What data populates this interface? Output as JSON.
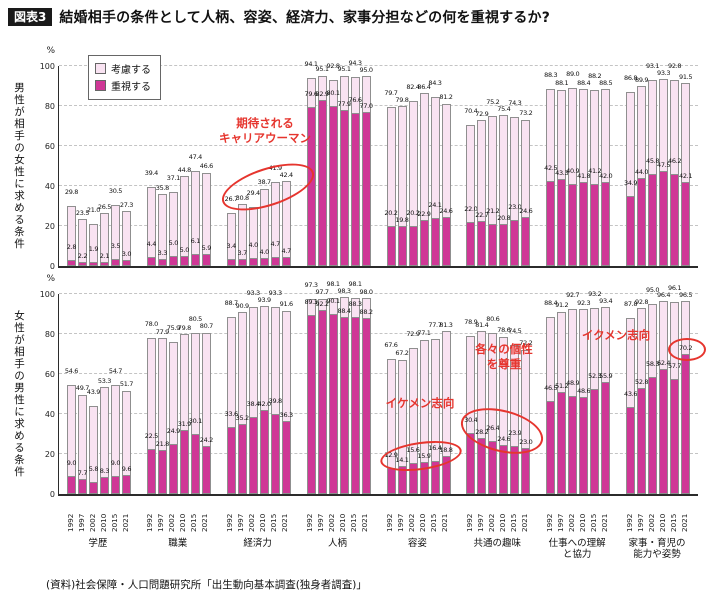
{
  "figure": {
    "tag": "図表3",
    "title": "結婚相手の条件として人柄、容姿、経済力、家事分担などの何を重視するか?"
  },
  "legend": {
    "items": [
      {
        "label": "考慮する",
        "color": "#f9e3f2"
      },
      {
        "label": "重視する",
        "color": "#cf3796"
      }
    ]
  },
  "source": "(資料)社会保障・人口問題研究所「出生動向基本調査(独身者調査)」",
  "annotations": {
    "career_woman": "期待される\nキャリアウーマン",
    "ikemen": "イケメン志向",
    "kosei": "各々の個性\nを尊重",
    "ikumen": "イクメン志向"
  },
  "category_labels": [
    "学歴",
    "職業",
    "経済力",
    "人柄",
    "容姿",
    "共通の趣味",
    "仕事への理解\nと協力",
    "家事・育児の\n能力や姿勢"
  ],
  "chart_data": [
    {
      "id": "panel-men",
      "type": "bar",
      "stacked": true,
      "side_label": "男性が相手の女性に求める条件",
      "ylabel": "%",
      "ylim": [
        0,
        100
      ],
      "yticks": [
        0,
        20,
        40,
        60,
        80,
        100
      ],
      "grid": true,
      "years": [
        "1992",
        "1997",
        "2002",
        "2010",
        "2015",
        "2021"
      ],
      "series_note": "total=考慮する+重視する, emphasize=重視する",
      "groups": [
        {
          "category": "学歴",
          "total": [
            29.8,
            23.5,
            21.0,
            26.5,
            30.5,
            27.3
          ],
          "emphasize": [
            2.8,
            2.2,
            1.9,
            2.1,
            3.5,
            3.0
          ]
        },
        {
          "category": "職業",
          "total": [
            39.4,
            35.8,
            37.1,
            44.8,
            47.4,
            46.6
          ],
          "emphasize": [
            4.4,
            3.3,
            5.0,
            5.0,
            6.1,
            5.9
          ]
        },
        {
          "category": "経済力",
          "total": [
            26.7,
            30.8,
            29.4,
            38.7,
            41.9,
            42.4
          ],
          "emphasize": [
            3.4,
            3.7,
            4.0,
            4.0,
            4.7,
            4.7
          ]
        },
        {
          "category": "人柄",
          "total": [
            94.1,
            95.1,
            92.8,
            95.1,
            94.3,
            95.0
          ],
          "emphasize": [
            79.6,
            82.9,
            80.1,
            77.9,
            76.6,
            77.0
          ]
        },
        {
          "category": "容姿",
          "total": [
            79.7,
            79.8,
            82.4,
            86.4,
            84.3,
            81.2
          ],
          "emphasize": [
            20.2,
            19.8,
            20.2,
            22.9,
            24.1,
            24.6
          ]
        },
        {
          "category": "共通の趣味",
          "total": [
            70.4,
            72.9,
            75.2,
            75.4,
            74.3,
            73.2
          ],
          "emphasize": [
            22.0,
            22.7,
            21.2,
            20.8,
            23.0,
            24.6
          ]
        },
        {
          "category": "仕事への理解と協力",
          "total": [
            88.3,
            88.1,
            89.0,
            88.4,
            88.2,
            88.5
          ],
          "emphasize": [
            42.5,
            43.3,
            40.9,
            41.8,
            41.2,
            42.0
          ]
        },
        {
          "category": "家事・育児の能力や姿勢",
          "total": [
            86.8,
            89.9,
            93.1,
            93.3,
            92.8,
            91.5
          ],
          "emphasize": [
            34.9,
            44.0,
            45.8,
            47.5,
            46.2,
            42.1
          ]
        }
      ],
      "annotations": [
        {
          "text": "期待されるキャリアウーマン",
          "target": "経済力"
        }
      ]
    },
    {
      "id": "panel-women",
      "type": "bar",
      "stacked": true,
      "side_label": "女性が相手の男性に求める条件",
      "ylabel": "%",
      "ylim": [
        0,
        100
      ],
      "yticks": [
        0,
        20,
        40,
        60,
        80,
        100
      ],
      "grid": true,
      "years": [
        "1992",
        "1997",
        "2002",
        "2010",
        "2015",
        "2021"
      ],
      "series_note": "total=考慮する+重視する, emphasize=重視する",
      "groups": [
        {
          "category": "学歴",
          "total": [
            54.6,
            49.7,
            43.9,
            53.3,
            54.7,
            51.7
          ],
          "emphasize": [
            9.0,
            7.7,
            5.8,
            8.3,
            9.0,
            9.6
          ]
        },
        {
          "category": "職業",
          "total": [
            78.0,
            77.9,
            75.9,
            79.8,
            80.5,
            80.7
          ],
          "emphasize": [
            22.5,
            21.8,
            24.9,
            31.9,
            30.1,
            24.2
          ]
        },
        {
          "category": "経済力",
          "total": [
            88.7,
            90.9,
            93.3,
            93.9,
            93.3,
            91.6
          ],
          "emphasize": [
            33.6,
            35.2,
            38.4,
            42.0,
            39.8,
            36.3
          ]
        },
        {
          "category": "人柄",
          "total": [
            97.3,
            97.7,
            98.1,
            98.3,
            98.1,
            98.0
          ],
          "emphasize": [
            89.3,
            92.2,
            90.1,
            88.4,
            88.3,
            88.2
          ]
        },
        {
          "category": "容姿",
          "total": [
            67.6,
            67.2,
            72.9,
            77.1,
            77.7,
            81.3
          ],
          "emphasize": [
            12.9,
            14.1,
            15.6,
            15.9,
            16.4,
            18.8
          ]
        },
        {
          "category": "共通の趣味",
          "total": [
            78.9,
            81.4,
            80.6,
            78.6,
            74.5,
            72.2
          ],
          "emphasize": [
            30.4,
            28.2,
            26.4,
            24.6,
            23.9,
            23.0
          ]
        },
        {
          "category": "仕事への理解と協力",
          "total": [
            88.4,
            91.2,
            92.7,
            92.3,
            93.2,
            93.4
          ],
          "emphasize": [
            46.5,
            51.2,
            48.9,
            48.6,
            52.3,
            55.9
          ]
        },
        {
          "category": "家事・育児の能力や姿勢",
          "total": [
            87.8,
            92.8,
            95.0,
            96.4,
            96.1,
            96.5
          ],
          "emphasize": [
            43.6,
            52.8,
            58.3,
            62.4,
            57.7,
            70.2
          ]
        }
      ],
      "annotations": [
        {
          "text": "イケメン志向",
          "target": "容姿"
        },
        {
          "text": "各々の個性を尊重",
          "target": "共通の趣味"
        },
        {
          "text": "イクメン志向",
          "target": "家事・育児の能力や姿勢"
        }
      ]
    }
  ]
}
